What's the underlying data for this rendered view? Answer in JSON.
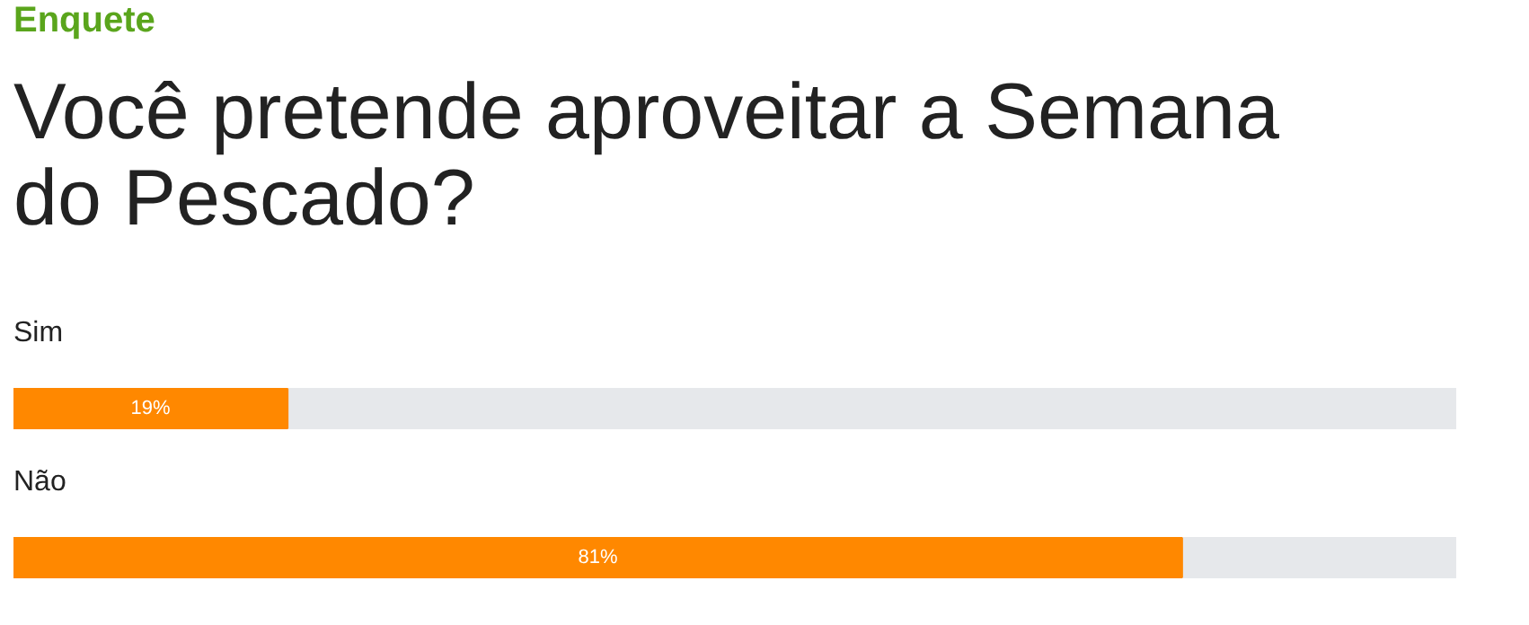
{
  "chart_data": {
    "type": "bar",
    "orientation": "horizontal",
    "subtitle": "Enquete",
    "title": "Você pretende aproveitar a Semana do Pescado?",
    "categories": [
      "Sim",
      "Não"
    ],
    "values": [
      19,
      81
    ],
    "value_labels": [
      "19%",
      "81%"
    ],
    "color": "#ff8800"
  }
}
